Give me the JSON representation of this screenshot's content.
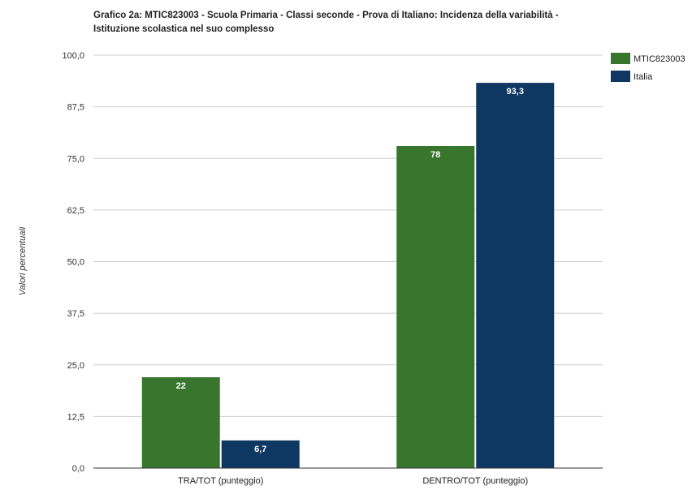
{
  "chart_data": {
    "type": "bar",
    "title_lines": [
      "Grafico 2a: MTIC823003 - Scuola Primaria - Classi seconde - Prova di Italiano: Incidenza della variabilità -",
      "Istituzione scolastica nel suo complesso"
    ],
    "ylabel": "Valori percentuali",
    "xlabel": "",
    "categories": [
      "TRA/TOT (punteggio)",
      "DENTRO/TOT (punteggio)"
    ],
    "series": [
      {
        "name": "MTIC823003",
        "color": "#38762e",
        "values": [
          22,
          78
        ],
        "labels": [
          "22",
          "78"
        ]
      },
      {
        "name": "Italia",
        "color": "#0e3761",
        "values": [
          6.7,
          93.3
        ],
        "labels": [
          "6,7",
          "93,3"
        ]
      }
    ],
    "ylim": [
      0,
      100
    ],
    "yticks": [
      0,
      12.5,
      25,
      37.5,
      50,
      62.5,
      75,
      87.5,
      100
    ],
    "ytick_labels": [
      "0,0",
      "12,5",
      "25,0",
      "37,5",
      "50,0",
      "62,5",
      "75,0",
      "87,5",
      "100,0"
    ],
    "grid": true,
    "legend_position": "top-right"
  }
}
